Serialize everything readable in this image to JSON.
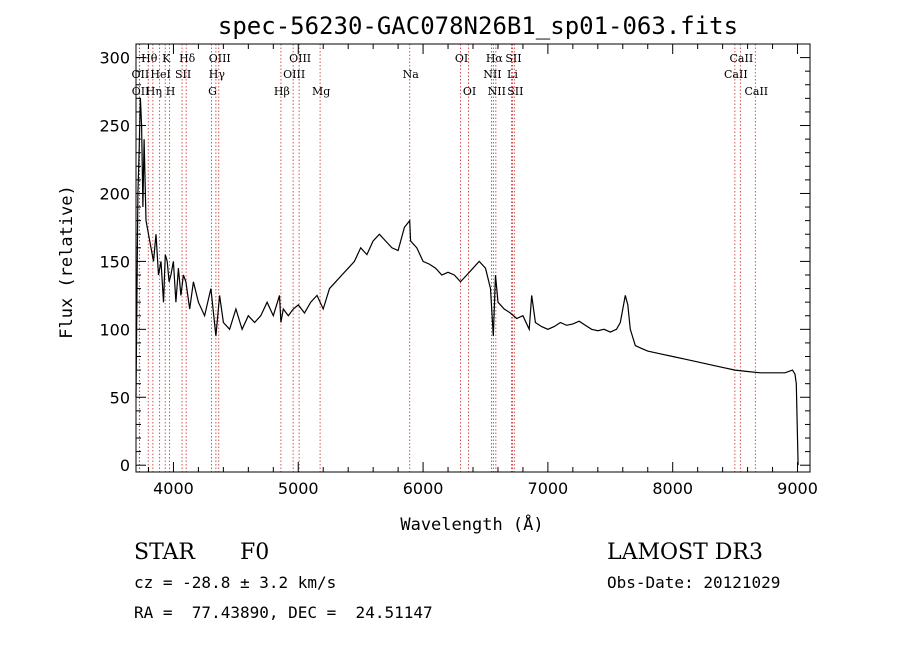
{
  "chart_data": {
    "type": "line",
    "title": "spec-56230-GAC078N26B1_sp01-063.fits",
    "xlabel": "Wavelength (Å)",
    "ylabel": "Flux (relative)",
    "xlim": [
      3700,
      9100
    ],
    "ylim": [
      -5,
      310
    ],
    "xticks": [
      4000,
      5000,
      6000,
      7000,
      8000,
      9000
    ],
    "xtick_labels": [
      "4000",
      "5000",
      "6000",
      "7000",
      "8000",
      "9000"
    ],
    "yticks": [
      0,
      50,
      100,
      150,
      200,
      250,
      300
    ],
    "ytick_labels": [
      "0",
      "50",
      "100",
      "150",
      "200",
      "250",
      "300"
    ],
    "grid": false,
    "series": [
      {
        "name": "flux",
        "x": [
          3700,
          3715,
          3725,
          3735,
          3745,
          3755,
          3765,
          3780,
          3800,
          3820,
          3840,
          3860,
          3880,
          3900,
          3920,
          3935,
          3950,
          3965,
          3980,
          4000,
          4020,
          4040,
          4060,
          4080,
          4100,
          4130,
          4160,
          4200,
          4250,
          4300,
          4340,
          4370,
          4400,
          4450,
          4500,
          4550,
          4600,
          4650,
          4700,
          4750,
          4800,
          4850,
          4861,
          4880,
          4920,
          4960,
          5000,
          5050,
          5100,
          5150,
          5200,
          5250,
          5300,
          5350,
          5400,
          5450,
          5500,
          5550,
          5600,
          5650,
          5700,
          5750,
          5800,
          5850,
          5893,
          5900,
          5950,
          6000,
          6050,
          6100,
          6150,
          6200,
          6250,
          6300,
          6350,
          6400,
          6450,
          6500,
          6540,
          6563,
          6580,
          6600,
          6650,
          6700,
          6750,
          6800,
          6850,
          6870,
          6900,
          6950,
          7000,
          7050,
          7100,
          7150,
          7200,
          7250,
          7300,
          7350,
          7400,
          7450,
          7500,
          7550,
          7580,
          7600,
          7620,
          7640,
          7660,
          7700,
          7750,
          7800,
          7900,
          8000,
          8100,
          8200,
          8300,
          8400,
          8500,
          8600,
          8700,
          8800,
          8900,
          8960,
          8980,
          8990,
          9000,
          9005
        ],
        "values": [
          50,
          200,
          230,
          270,
          250,
          190,
          240,
          180,
          170,
          160,
          150,
          170,
          140,
          150,
          120,
          155,
          150,
          135,
          140,
          150,
          120,
          145,
          125,
          140,
          135,
          115,
          135,
          120,
          110,
          130,
          95,
          125,
          105,
          100,
          115,
          100,
          110,
          105,
          110,
          120,
          110,
          125,
          105,
          115,
          110,
          115,
          118,
          112,
          120,
          125,
          115,
          130,
          135,
          140,
          145,
          150,
          160,
          155,
          165,
          170,
          165,
          160,
          158,
          175,
          180,
          165,
          160,
          150,
          148,
          145,
          140,
          142,
          140,
          135,
          140,
          145,
          150,
          145,
          130,
          95,
          140,
          120,
          115,
          112,
          108,
          110,
          100,
          125,
          105,
          102,
          100,
          102,
          105,
          103,
          104,
          106,
          103,
          100,
          99,
          100,
          98,
          100,
          105,
          115,
          125,
          118,
          100,
          88,
          86,
          84,
          82,
          80,
          78,
          76,
          74,
          72,
          70,
          69,
          68,
          68,
          68,
          70,
          67,
          60,
          20,
          0
        ]
      }
    ],
    "lines": [
      {
        "label": "Hθ",
        "wavelength": 3798,
        "row": 1,
        "style": "serif"
      },
      {
        "label": "OII",
        "wavelength": 3727,
        "row": 2,
        "style": "serif"
      },
      {
        "label": "OII",
        "wavelength": 3729,
        "row": 3,
        "style": "serif"
      },
      {
        "label": "K",
        "wavelength": 3934,
        "row": 1,
        "style": "serif"
      },
      {
        "label": "HeI",
        "wavelength": 3889,
        "row": 2,
        "style": "serif"
      },
      {
        "label": "Hη",
        "wavelength": 3835,
        "row": 3,
        "style": "serif"
      },
      {
        "label": "SII",
        "wavelength": 4069,
        "row": 2,
        "style": "serif"
      },
      {
        "label": "H",
        "wavelength": 3969,
        "row": 3,
        "style": "serif"
      },
      {
        "label": "Hδ",
        "wavelength": 4102,
        "row": 1,
        "style": "serif"
      },
      {
        "label": "OIII",
        "wavelength": 4363,
        "row": 1,
        "style": "serif"
      },
      {
        "label": "Hγ",
        "wavelength": 4340,
        "row": 2,
        "style": "serif"
      },
      {
        "label": "G",
        "wavelength": 4305,
        "row": 3,
        "style": "serif"
      },
      {
        "label": "Hβ",
        "wavelength": 4861,
        "row": 3,
        "style": "serif"
      },
      {
        "label": "OIII",
        "wavelength": 5007,
        "row": 1,
        "style": "serif"
      },
      {
        "label": "OIII",
        "wavelength": 4959,
        "row": 2,
        "style": "serif"
      },
      {
        "label": "Mg",
        "wavelength": 5175,
        "row": 3,
        "style": "serif"
      },
      {
        "label": "Na",
        "wavelength": 5893,
        "row": 2,
        "style": "serif"
      },
      {
        "label": "OI",
        "wavelength": 6300,
        "row": 1,
        "style": "serif"
      },
      {
        "label": "OI",
        "wavelength": 6364,
        "row": 3,
        "style": "serif"
      },
      {
        "label": "Hα",
        "wavelength": 6563,
        "row": 1,
        "style": "serif"
      },
      {
        "label": "SII",
        "wavelength": 6716,
        "row": 1,
        "style": "serif"
      },
      {
        "label": "NII",
        "wavelength": 6548,
        "row": 2,
        "style": "serif"
      },
      {
        "label": "Li",
        "wavelength": 6708,
        "row": 2,
        "style": "serif"
      },
      {
        "label": "NII",
        "wavelength": 6583,
        "row": 3,
        "style": "serif"
      },
      {
        "label": "SII",
        "wavelength": 6731,
        "row": 3,
        "style": "serif"
      },
      {
        "label": "CaII",
        "wavelength": 8542,
        "row": 1,
        "style": "serif"
      },
      {
        "label": "CaII",
        "wavelength": 8498,
        "row": 2,
        "style": "serif"
      },
      {
        "label": "CaII",
        "wavelength": 8662,
        "row": 3,
        "style": "serif"
      }
    ],
    "line_color": "#d04040"
  },
  "info": {
    "object_class": "STAR",
    "subclass": "F0",
    "survey": "LAMOST DR3",
    "cz": "cz = -28.8 ± 3.2 km/s",
    "obs_date": "Obs-Date: 20121029",
    "coords": "RA =  77.43890, DEC =  24.51147"
  }
}
